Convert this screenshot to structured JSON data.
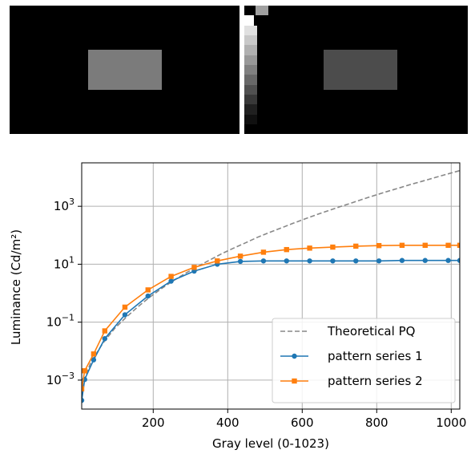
{
  "stimuli": {
    "left_patch_gray": "#7b7b7b",
    "right_patch_gray": "#4c4c4c",
    "ramp_steps": [
      "#a0a0a0",
      "#ffffff",
      "#e0e0e0",
      "#c8c8c8",
      "#b0b0b0",
      "#989898",
      "#808080",
      "#686868",
      "#505050",
      "#383838",
      "#202020",
      "#101010"
    ]
  },
  "chart_data": {
    "type": "line",
    "xlabel": "Gray level (0-1023)",
    "ylabel": "Luminance (Cd/m²)",
    "xlim": [
      8,
      1023
    ],
    "ylim": [
      0.0001,
      31623
    ],
    "yscale": "log",
    "grid": true,
    "legend_position": "lower-right",
    "x_ticks": [
      {
        "value": 200,
        "label": "200"
      },
      {
        "value": 400,
        "label": "400"
      },
      {
        "value": 600,
        "label": "600"
      },
      {
        "value": 800,
        "label": "800"
      },
      {
        "value": 1000,
        "label": "1000"
      }
    ],
    "y_ticks": [
      {
        "value": 0.001,
        "base": "10",
        "exp": "−3"
      },
      {
        "value": 0.1,
        "base": "10",
        "exp": "−1"
      },
      {
        "value": 10,
        "base": "10",
        "exp": "1"
      },
      {
        "value": 1000,
        "base": "10",
        "exp": "3"
      }
    ],
    "series": [
      {
        "name": "Theoretical PQ",
        "color": "#888888",
        "style": "dashed",
        "marker": "none",
        "points": [
          [
            8,
            0.0003
          ],
          [
            16,
            0.0011
          ],
          [
            32,
            0.004
          ],
          [
            64,
            0.018
          ],
          [
            96,
            0.06
          ],
          [
            128,
            0.15
          ],
          [
            160,
            0.35
          ],
          [
            192,
            0.75
          ],
          [
            224,
            1.5
          ],
          [
            256,
            2.8
          ],
          [
            288,
            5
          ],
          [
            320,
            8.5
          ],
          [
            352,
            14
          ],
          [
            384,
            23
          ],
          [
            416,
            36
          ],
          [
            448,
            55
          ],
          [
            480,
            85
          ],
          [
            512,
            125
          ],
          [
            544,
            180
          ],
          [
            576,
            260
          ],
          [
            608,
            370
          ],
          [
            640,
            520
          ],
          [
            672,
            720
          ],
          [
            704,
            990
          ],
          [
            736,
            1350
          ],
          [
            768,
            1850
          ],
          [
            800,
            2500
          ],
          [
            832,
            3350
          ],
          [
            864,
            4450
          ],
          [
            896,
            5900
          ],
          [
            928,
            7700
          ],
          [
            960,
            10100
          ],
          [
            992,
            13200
          ],
          [
            1023,
            17000
          ]
        ]
      },
      {
        "name": "pattern series 1",
        "color": "#1f77b4",
        "style": "solid",
        "marker": "circle",
        "points": [
          [
            8,
            0.0002
          ],
          [
            16,
            0.00105
          ],
          [
            40,
            0.005
          ],
          [
            70,
            0.027
          ],
          [
            124,
            0.18
          ],
          [
            186,
            0.8
          ],
          [
            248,
            2.6
          ],
          [
            310,
            5.8
          ],
          [
            372,
            10
          ],
          [
            434,
            12.5
          ],
          [
            496,
            13
          ],
          [
            558,
            13
          ],
          [
            620,
            13
          ],
          [
            682,
            13
          ],
          [
            744,
            13
          ],
          [
            806,
            13
          ],
          [
            868,
            13.5
          ],
          [
            930,
            13.5
          ],
          [
            992,
            13.5
          ],
          [
            1023,
            13.5
          ]
        ]
      },
      {
        "name": "pattern series 2",
        "color": "#ff7f0e",
        "style": "solid",
        "marker": "square",
        "points": [
          [
            8,
            0.0005
          ],
          [
            16,
            0.0021
          ],
          [
            40,
            0.008
          ],
          [
            70,
            0.05
          ],
          [
            124,
            0.33
          ],
          [
            186,
            1.3
          ],
          [
            248,
            3.8
          ],
          [
            310,
            7.8
          ],
          [
            372,
            13
          ],
          [
            434,
            19
          ],
          [
            496,
            26
          ],
          [
            558,
            32
          ],
          [
            620,
            36
          ],
          [
            682,
            39
          ],
          [
            744,
            42
          ],
          [
            806,
            44
          ],
          [
            868,
            45
          ],
          [
            930,
            45
          ],
          [
            992,
            45
          ],
          [
            1023,
            45
          ]
        ]
      }
    ]
  }
}
